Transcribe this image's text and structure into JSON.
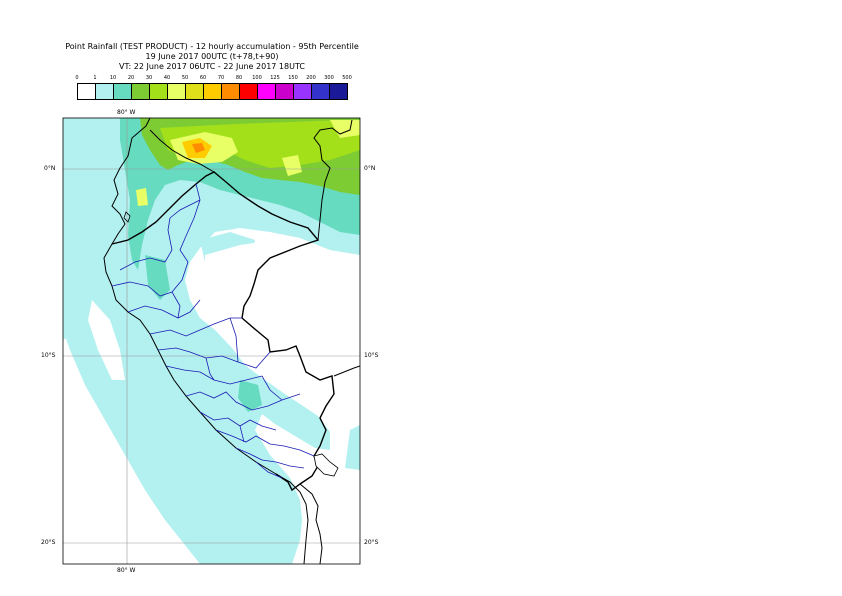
{
  "title": {
    "line1": "Point Rainfall (TEST PRODUCT) - 12 hourly accumulation - 95th Percentile",
    "line2": "19 June 2017 00UTC (t+78,t+90)",
    "line3": "VT: 22 June 2017 06UTC - 22 June 2017 18UTC"
  },
  "legend": {
    "thresholds": [
      "0",
      "1",
      "10",
      "20",
      "30",
      "40",
      "50",
      "60",
      "70",
      "80",
      "100",
      "125",
      "150",
      "200",
      "300",
      "500"
    ],
    "colors": [
      "#ffffff",
      "#b3f0f0",
      "#66dbbf",
      "#7dcc33",
      "#a3e01a",
      "#e8ff66",
      "#e0e01a",
      "#ffcc00",
      "#ff8c00",
      "#ff0000",
      "#ff00ff",
      "#cc00cc",
      "#9933ff",
      "#3333cc",
      "#1a1a99"
    ]
  },
  "axes": {
    "lon_top": "80° W",
    "lon_bottom": "80° W",
    "lat_left": [
      "0°N",
      "10°S",
      "20°S"
    ],
    "lat_right": [
      "0°N",
      "10°S",
      "20°S"
    ]
  }
}
